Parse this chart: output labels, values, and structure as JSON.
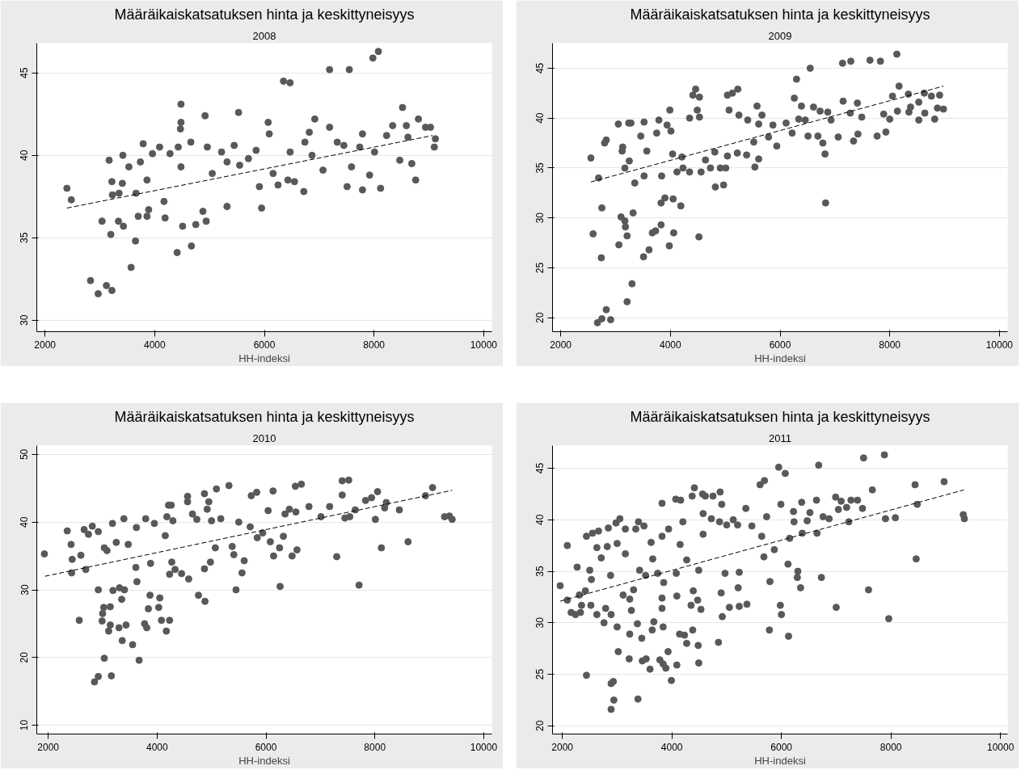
{
  "chart_data": [
    {
      "type": "scatter",
      "title": "Määräikaiskatsatuksen hinta ja keskittyneisyys",
      "subtitle": "2008",
      "xlabel": "HH-indeksi",
      "xlim": [
        1850,
        10150
      ],
      "ylim": [
        29.3,
        46.8
      ],
      "xticks": [
        2000,
        4000,
        6000,
        8000,
        10000
      ],
      "yticks": [
        30,
        35,
        40,
        45
      ],
      "grid": "y",
      "marker": "circle",
      "line_style": "dashed",
      "series": [
        {
          "color": "#595959",
          "x": [
            2400,
            2480,
            2830,
            2970,
            3120,
            3220,
            3040,
            3200,
            3170,
            3220,
            3230,
            3350,
            3410,
            3340,
            3430,
            3420,
            3530,
            3570,
            3650,
            3660,
            3700,
            3790,
            3740,
            3860,
            3890,
            3860,
            3960,
            4090,
            4170,
            4190,
            4280,
            4430,
            4410,
            4480,
            4480,
            4470,
            4480,
            4510,
            4670,
            4660,
            4750,
            4920,
            4960,
            4880,
            4940,
            5050,
            5220,
            5320,
            5320,
            5530,
            5450,
            5550,
            5710,
            5850,
            5950,
            5910,
            6070,
            6090,
            6160,
            6250,
            6350,
            6470,
            6470,
            6430,
            6550,
            6740,
            6720,
            6820,
            6920,
            6870,
            7070,
            7190,
            7190,
            7330,
            7550,
            7510,
            7450,
            7590,
            7790,
            7790,
            7740,
            7920,
            7980,
            8080,
            8120,
            8010,
            8230,
            8340,
            8520,
            8590,
            8620,
            8760,
            8810,
            8940,
            9030,
            9120,
            9100,
            8690,
            8470
          ],
          "values": [
            38.0,
            37.3,
            32.4,
            31.6,
            32.1,
            31.8,
            36.0,
            35.2,
            39.7,
            38.4,
            37.6,
            37.7,
            38.3,
            36.0,
            35.7,
            40.0,
            39.3,
            33.2,
            34.8,
            37.7,
            36.3,
            40.7,
            39.6,
            36.3,
            36.7,
            38.5,
            40.1,
            40.5,
            37.2,
            36.2,
            40.1,
            40.5,
            34.1,
            43.1,
            42.0,
            41.6,
            39.3,
            35.7,
            34.5,
            40.8,
            35.8,
            42.4,
            40.5,
            36.6,
            36.0,
            38.9,
            40.2,
            36.9,
            39.6,
            42.6,
            40.6,
            39.4,
            39.8,
            40.3,
            36.8,
            38.1,
            42.0,
            41.3,
            38.9,
            38.2,
            44.5,
            44.4,
            40.2,
            38.5,
            38.4,
            40.8,
            37.8,
            41.4,
            42.2,
            40.0,
            39.1,
            45.2,
            41.7,
            40.8,
            45.2,
            38.1,
            40.6,
            39.3,
            41.3,
            37.9,
            40.5,
            38.8,
            45.9,
            46.3,
            38.0,
            40.2,
            41.2,
            41.8,
            42.9,
            41.8,
            41.1,
            38.5,
            42.2,
            41.7,
            41.7,
            41.0,
            40.5,
            39.5,
            39.7
          ]
        },
        {
          "type": "line",
          "marker": "none",
          "color": "#000000",
          "x": [
            2400,
            9070
          ],
          "values": [
            36.8,
            41.2
          ]
        }
      ]
    },
    {
      "type": "scatter",
      "title": "Määräikaiskatsatuksen hinta ja keskittyneisyys",
      "subtitle": "2009",
      "xlabel": "HH-indeksi",
      "xlim": [
        1850,
        10150
      ],
      "ylim": [
        18.6,
        47.5
      ],
      "xticks": [
        2000,
        4000,
        6000,
        8000,
        10000
      ],
      "yticks": [
        20,
        25,
        30,
        35,
        40,
        45
      ],
      "grid": "y",
      "marker": "circle",
      "line_style": "dashed",
      "series": [
        {
          "color": "#595959",
          "x": [
            2550,
            2590,
            2690,
            2670,
            2750,
            2830,
            2910,
            2750,
            2740,
            2800,
            2830,
            3050,
            3060,
            3100,
            3170,
            3180,
            3210,
            3210,
            3300,
            3320,
            3130,
            3120,
            3240,
            3280,
            3250,
            3170,
            3350,
            3460,
            3510,
            3610,
            3520,
            3570,
            3520,
            3670,
            3730,
            3750,
            3790,
            3830,
            3830,
            3900,
            3840,
            3940,
            3980,
            3990,
            4050,
            4060,
            4190,
            4010,
            4040,
            4120,
            4210,
            4230,
            4350,
            4350,
            4410,
            4460,
            4530,
            4490,
            4520,
            4530,
            4560,
            4640,
            4730,
            4820,
            4970,
            4810,
            4910,
            5010,
            5040,
            5130,
            5230,
            5070,
            5040,
            5220,
            5390,
            5250,
            5410,
            5540,
            5580,
            5610,
            5670,
            5610,
            5520,
            5790,
            5870,
            5940,
            6110,
            6220,
            6260,
            6300,
            6390,
            6340,
            6460,
            6510,
            6550,
            6610,
            6690,
            6730,
            6820,
            6830,
            6780,
            6870,
            6930,
            7060,
            7140,
            7150,
            7290,
            7280,
            7410,
            7340,
            7420,
            7490,
            7640,
            7830,
            7770,
            7930,
            7890,
            8000,
            8130,
            8170,
            8050,
            8140,
            8340,
            8380,
            8350,
            8530,
            8530,
            8630,
            8640,
            8760,
            8820,
            8870,
            8910,
            8980
          ],
          "values": [
            36.0,
            28.4,
            34.0,
            19.5,
            19.9,
            20.8,
            19.8,
            31.0,
            26.0,
            37.5,
            37.8,
            39.4,
            27.3,
            30.1,
            29.7,
            29.1,
            28.2,
            21.6,
            23.4,
            30.5,
            37.1,
            36.7,
            39.5,
            39.5,
            35.7,
            35.0,
            33.5,
            38.2,
            26.1,
            26.8,
            39.6,
            36.7,
            34.2,
            28.5,
            28.7,
            38.5,
            39.8,
            29.3,
            31.5,
            32.0,
            34.2,
            39.3,
            27.2,
            40.8,
            31.9,
            28.5,
            31.2,
            38.7,
            36.4,
            34.6,
            36.1,
            35.0,
            40.0,
            34.6,
            42.3,
            42.9,
            42.1,
            40.8,
            28.1,
            40.1,
            34.6,
            35.8,
            35.0,
            33.1,
            33.3,
            36.6,
            35.0,
            35.0,
            42.3,
            42.5,
            42.9,
            40.8,
            36.2,
            36.5,
            36.3,
            40.3,
            39.8,
            35.1,
            41.2,
            35.9,
            40.3,
            39.4,
            37.6,
            38.1,
            39.3,
            37.2,
            39.5,
            38.5,
            42.0,
            43.9,
            41.2,
            39.9,
            39.8,
            38.2,
            45.0,
            41.1,
            38.2,
            40.7,
            36.4,
            31.5,
            37.5,
            40.6,
            39.8,
            38.1,
            45.5,
            41.7,
            45.7,
            40.5,
            41.5,
            37.7,
            38.4,
            40.1,
            45.8,
            45.7,
            38.2,
            38.6,
            40.4,
            39.9,
            46.4,
            43.2,
            42.2,
            40.7,
            42.4,
            41.1,
            40.6,
            41.6,
            39.8,
            42.5,
            40.5,
            42.2,
            39.9,
            41.0,
            42.3,
            40.9
          ]
        },
        {
          "type": "line",
          "marker": "none",
          "color": "#000000",
          "x": [
            2550,
            8980
          ],
          "values": [
            33.6,
            43.2
          ]
        }
      ]
    },
    {
      "type": "scatter",
      "title": "Määräikaiskatsatuksen hinta ja keskittyneisyys",
      "subtitle": "2010",
      "xlabel": "HH-indeksi",
      "xlim": [
        1790,
        10150
      ],
      "ylim": [
        8.7,
        51.3
      ],
      "xticks": [
        2000,
        4000,
        6000,
        8000,
        10000
      ],
      "yticks": [
        10,
        20,
        30,
        40,
        50
      ],
      "grid": "y",
      "marker": "circle",
      "line_style": "dashed",
      "series": [
        {
          "color": "#595959",
          "x": [
            1930,
            2350,
            2420,
            2440,
            2430,
            2570,
            2660,
            2810,
            2740,
            2600,
            2690,
            2920,
            3020,
            3000,
            2990,
            2850,
            2920,
            3030,
            3160,
            3110,
            3140,
            3140,
            3190,
            3300,
            3360,
            3430,
            3550,
            3670,
            3310,
            3400,
            3350,
            3180,
            3390,
            3080,
            3030,
            2920,
            3250,
            3470,
            3620,
            3610,
            3630,
            3790,
            3770,
            3810,
            3840,
            3870,
            3950,
            3880,
            4050,
            4030,
            4080,
            4230,
            4170,
            4180,
            4210,
            4260,
            4290,
            4230,
            4270,
            4330,
            4450,
            4150,
            4560,
            4560,
            4580,
            4650,
            4730,
            4760,
            4880,
            4870,
            4950,
            4920,
            5090,
            5000,
            4980,
            4870,
            5070,
            5320,
            5170,
            5380,
            5410,
            5450,
            5560,
            5600,
            5500,
            5710,
            5730,
            5830,
            5840,
            5940,
            6040,
            6080,
            6130,
            6140,
            6260,
            6250,
            6320,
            6350,
            6430,
            6480,
            6570,
            6540,
            6650,
            6550,
            6790,
            7010,
            7170,
            7300,
            7400,
            7520,
            7400,
            7450,
            7540,
            7640,
            7710,
            7830,
            7940,
            8050,
            8010,
            8120,
            8180,
            8210,
            8450,
            8610,
            8930,
            9060,
            9280,
            9370,
            9420
          ],
          "values": [
            35.3,
            38.7,
            36.7,
            34.5,
            32.5,
            25.5,
            38.9,
            39.4,
            38.2,
            35.1,
            33.0,
            30.0,
            27.4,
            26.5,
            25.4,
            16.4,
            17.2,
            19.9,
            17.3,
            23.9,
            24.8,
            27.5,
            29.9,
            24.4,
            22.5,
            24.8,
            21.9,
            19.6,
            30.3,
            30.0,
            28.6,
            39.8,
            40.5,
            35.8,
            36.2,
            38.6,
            37.0,
            36.7,
            39.2,
            33.3,
            31.2,
            40.5,
            25.0,
            24.4,
            27.2,
            29.2,
            39.8,
            33.9,
            28.8,
            27.4,
            25.5,
            25.5,
            23.9,
            40.8,
            42.5,
            42.5,
            40.2,
            32.3,
            34.1,
            33.0,
            32.4,
            38.0,
            43.8,
            43.0,
            31.6,
            41.2,
            40.4,
            29.2,
            28.3,
            44.2,
            43.0,
            41.9,
            44.9,
            40.2,
            34.1,
            33.1,
            36.2,
            45.4,
            40.5,
            36.4,
            35.2,
            30.0,
            32.5,
            34.3,
            40.0,
            39.3,
            43.9,
            44.4,
            37.7,
            38.4,
            41.7,
            37.1,
            44.6,
            35.0,
            30.5,
            36.2,
            37.9,
            41.2,
            41.9,
            35.0,
            35.9,
            45.3,
            45.6,
            41.5,
            42.3,
            40.8,
            42.3,
            34.9,
            46.1,
            46.2,
            44.0,
            40.6,
            40.8,
            41.8,
            30.7,
            43.2,
            43.6,
            44.5,
            40.4,
            36.2,
            42.1,
            42.9,
            41.8,
            37.1,
            43.9,
            45.1,
            40.8,
            40.9,
            40.4
          ]
        },
        {
          "type": "line",
          "marker": "none",
          "color": "#000000",
          "x": [
            1940,
            9420
          ],
          "values": [
            32.0,
            44.7
          ]
        }
      ]
    },
    {
      "type": "scatter",
      "title": "Määräikaiskatsatuksen hinta ja keskittyneisyys",
      "subtitle": "2011",
      "xlabel": "HH-indeksi",
      "xlim": [
        1820,
        10130
      ],
      "ylim": [
        19.2,
        47.2
      ],
      "xticks": [
        2000,
        4000,
        6000,
        8000,
        10000
      ],
      "yticks": [
        20,
        25,
        30,
        35,
        40,
        45
      ],
      "grid": "y",
      "marker": "circle",
      "line_style": "dashed",
      "series": [
        {
          "color": "#595959",
          "x": [
            1960,
            2090,
            2090,
            2160,
            2240,
            2330,
            2270,
            2310,
            2350,
            2420,
            2440,
            2440,
            2550,
            2660,
            2500,
            2530,
            2520,
            2630,
            2630,
            2710,
            2760,
            2790,
            2820,
            2840,
            2890,
            2880,
            2890,
            2930,
            2940,
            2890,
            2980,
            3050,
            3000,
            3000,
            3020,
            3110,
            3150,
            3150,
            3220,
            3230,
            3230,
            3300,
            3260,
            3340,
            3390,
            3380,
            3370,
            3450,
            3460,
            3490,
            3410,
            3530,
            3600,
            3670,
            3640,
            3620,
            3650,
            3520,
            3740,
            3780,
            3840,
            3890,
            3850,
            3820,
            3820,
            3840,
            3820,
            3820,
            3940,
            3930,
            3990,
            4070,
            4160,
            4090,
            4090,
            4080,
            4150,
            4200,
            4270,
            4140,
            4230,
            4270,
            4380,
            4350,
            4370,
            4410,
            4390,
            4470,
            4490,
            4480,
            4530,
            4490,
            4560,
            4610,
            4750,
            4880,
            4850,
            4910,
            4570,
            4570,
            4720,
            4870,
            4920,
            4900,
            4970,
            5050,
            5000,
            5120,
            5200,
            5230,
            5210,
            5230,
            5370,
            5350,
            5460,
            5640,
            5610,
            5690,
            5680,
            5790,
            5780,
            5730,
            5870,
            5950,
            6070,
            5980,
            6000,
            6130,
            5990,
            6120,
            6150,
            6220,
            6230,
            6300,
            6290,
            6350,
            6370,
            6380,
            6470,
            6520,
            6640,
            6650,
            6680,
            6730,
            6760,
            6870,
            6990,
            7000,
            7040,
            7090,
            7190,
            7230,
            7270,
            7390,
            7480,
            7500,
            7590,
            7660,
            7880,
            7960,
            7900,
            8080,
            8440,
            8460,
            8480,
            8970,
            9320,
            9340
          ],
          "values": [
            33.6,
            37.5,
            32.2,
            31.0,
            30.8,
            31.0,
            35.4,
            32.7,
            31.7,
            33.1,
            24.9,
            38.4,
            38.7,
            38.9,
            35.1,
            34.2,
            31.7,
            30.8,
            37.3,
            36.3,
            30.0,
            31.4,
            37.4,
            39.2,
            30.8,
            34.6,
            24.1,
            24.3,
            22.5,
            21.6,
            39.7,
            40.1,
            37.7,
            29.6,
            27.2,
            32.7,
            39.1,
            36.7,
            26.5,
            28.9,
            32.3,
            33.2,
            31.2,
            39.1,
            39.8,
            22.6,
            29.9,
            28.5,
            26.3,
            39.4,
            35.1,
            26.5,
            25.5,
            30.1,
            29.3,
            37.8,
            36.2,
            34.6,
            34.8,
            26.4,
            26.0,
            25.6,
            33.9,
            32.4,
            31.4,
            29.6,
            41.6,
            38.4,
            39.1,
            27.2,
            24.4,
            42.0,
            41.9,
            32.6,
            25.9,
            34.8,
            37.6,
            39.8,
            36.1,
            28.9,
            28.8,
            28.0,
            29.3,
            31.7,
            42.3,
            43.1,
            33.1,
            32.2,
            26.1,
            27.8,
            31.3,
            35.1,
            42.5,
            42.3,
            42.3,
            42.7,
            28.1,
            41.5,
            38.6,
            40.6,
            40.1,
            39.8,
            30.6,
            32.9,
            34.8,
            31.5,
            39.5,
            40.0,
            39.5,
            34.9,
            33.4,
            31.6,
            31.8,
            41.1,
            39.4,
            38.4,
            43.4,
            43.8,
            36.4,
            34.0,
            29.3,
            40.3,
            37.1,
            45.1,
            44.5,
            31.7,
            30.8,
            28.7,
            41.5,
            35.7,
            38.2,
            40.8,
            39.8,
            35.0,
            34.4,
            33.4,
            41.7,
            38.7,
            39.9,
            40.7,
            41.9,
            38.7,
            45.3,
            34.4,
            40.3,
            40.1,
            42.2,
            31.5,
            41.0,
            41.8,
            41.2,
            39.8,
            41.9,
            41.9,
            41.1,
            46.0,
            33.2,
            42.9,
            46.3,
            30.4,
            40.1,
            40.2,
            43.4,
            36.2,
            41.5,
            43.7,
            40.5,
            40.1
          ]
        },
        {
          "type": "line",
          "marker": "none",
          "color": "#000000",
          "x": [
            1960,
            9330
          ],
          "values": [
            32.1,
            42.9
          ]
        }
      ]
    }
  ]
}
